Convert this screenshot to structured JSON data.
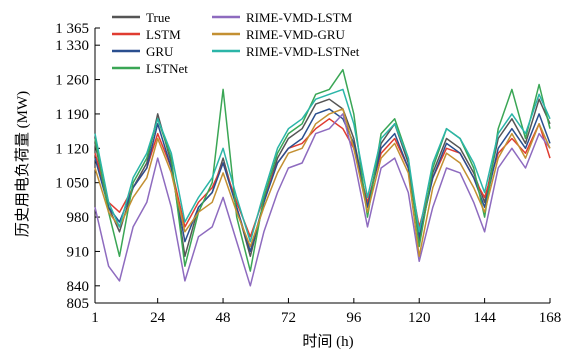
{
  "chart_data": {
    "type": "line",
    "title": "",
    "xlabel": "时间 (h)",
    "ylabel": "历史用电负荷量 (MW)",
    "xlim": [
      1,
      168
    ],
    "ylim": [
      805,
      1365
    ],
    "x_ticks": [
      1,
      24,
      48,
      72,
      96,
      120,
      144,
      168
    ],
    "x_tick_labels": [
      "1",
      "24",
      "48",
      "72",
      "96",
      "120",
      "144",
      "168"
    ],
    "y_ticks": [
      805,
      840,
      910,
      980,
      1050,
      1120,
      1190,
      1260,
      1330,
      1365
    ],
    "y_tick_labels": [
      "805",
      "840",
      "910",
      "980",
      "1 050",
      "1 120",
      "1 190",
      "1 260",
      "1 330",
      "1 365"
    ],
    "grid": false,
    "legend_position": "top-left",
    "legend_columns": 2,
    "x": [
      1,
      6,
      10,
      15,
      20,
      24,
      29,
      34,
      39,
      44,
      48,
      53,
      58,
      63,
      68,
      72,
      77,
      82,
      87,
      92,
      96,
      101,
      106,
      111,
      116,
      120,
      125,
      130,
      135,
      140,
      144,
      149,
      154,
      159,
      164,
      168
    ],
    "series": [
      {
        "name": "True",
        "color": "#555555",
        "values": [
          1130,
          1000,
          950,
          1040,
          1090,
          1190,
          1090,
          900,
          1000,
          1030,
          1100,
          1000,
          900,
          1010,
          1100,
          1140,
          1160,
          1210,
          1220,
          1200,
          1140,
          1000,
          1130,
          1170,
          1090,
          930,
          1070,
          1140,
          1120,
          1070,
          1010,
          1140,
          1180,
          1130,
          1220,
          1170
        ]
      },
      {
        "name": "LSTM",
        "color": "#e03c31",
        "values": [
          1110,
          1010,
          990,
          1040,
          1080,
          1150,
          1080,
          960,
          1010,
          1040,
          1090,
          1010,
          940,
          1020,
          1090,
          1120,
          1130,
          1160,
          1180,
          1160,
          1120,
          1010,
          1110,
          1140,
          1080,
          960,
          1060,
          1120,
          1110,
          1060,
          1020,
          1110,
          1140,
          1110,
          1170,
          1100
        ]
      },
      {
        "name": "GRU",
        "color": "#2a4f8f",
        "values": [
          1100,
          1000,
          970,
          1040,
          1080,
          1170,
          1080,
          930,
          1000,
          1030,
          1090,
          1000,
          910,
          1010,
          1090,
          1120,
          1140,
          1190,
          1200,
          1180,
          1130,
          1000,
          1120,
          1150,
          1080,
          940,
          1060,
          1130,
          1110,
          1060,
          1000,
          1120,
          1160,
          1120,
          1190,
          1130
        ]
      },
      {
        "name": "LSTNet",
        "color": "#3aa655",
        "values": [
          1140,
          990,
          900,
          1050,
          1100,
          1180,
          1100,
          880,
          990,
          1050,
          1240,
          980,
          870,
          1020,
          1110,
          1150,
          1170,
          1230,
          1240,
          1280,
          1190,
          980,
          1150,
          1180,
          1100,
          920,
          1080,
          1160,
          1140,
          1080,
          980,
          1160,
          1240,
          1140,
          1250,
          1160
        ]
      },
      {
        "name": "RIME-VMD-LSTM",
        "color": "#8e6bbf",
        "values": [
          1000,
          880,
          850,
          960,
          1010,
          1100,
          1000,
          850,
          940,
          960,
          1020,
          930,
          840,
          950,
          1030,
          1080,
          1090,
          1150,
          1160,
          1190,
          1100,
          960,
          1080,
          1100,
          1030,
          890,
          1000,
          1080,
          1070,
          1010,
          950,
          1080,
          1120,
          1080,
          1150,
          1120
        ]
      },
      {
        "name": "RIME-VMD-GRU",
        "color": "#c39032",
        "values": [
          1080,
          990,
          960,
          1020,
          1060,
          1140,
          1070,
          950,
          990,
          1010,
          1070,
          990,
          920,
          1000,
          1070,
          1110,
          1120,
          1170,
          1190,
          1200,
          1120,
          990,
          1100,
          1130,
          1070,
          900,
          1040,
          1110,
          1090,
          1040,
          990,
          1100,
          1150,
          1100,
          1170,
          1120
        ]
      },
      {
        "name": "RIME-VMD-LSTNet",
        "color": "#2bb5a8",
        "values": [
          1150,
          1010,
          960,
          1060,
          1110,
          1180,
          1110,
          970,
          1020,
          1060,
          1120,
          1020,
          930,
          1030,
          1120,
          1160,
          1180,
          1220,
          1230,
          1240,
          1170,
          1020,
          1140,
          1170,
          1100,
          950,
          1090,
          1160,
          1140,
          1090,
          1030,
          1150,
          1190,
          1150,
          1230,
          1180
        ]
      }
    ]
  }
}
